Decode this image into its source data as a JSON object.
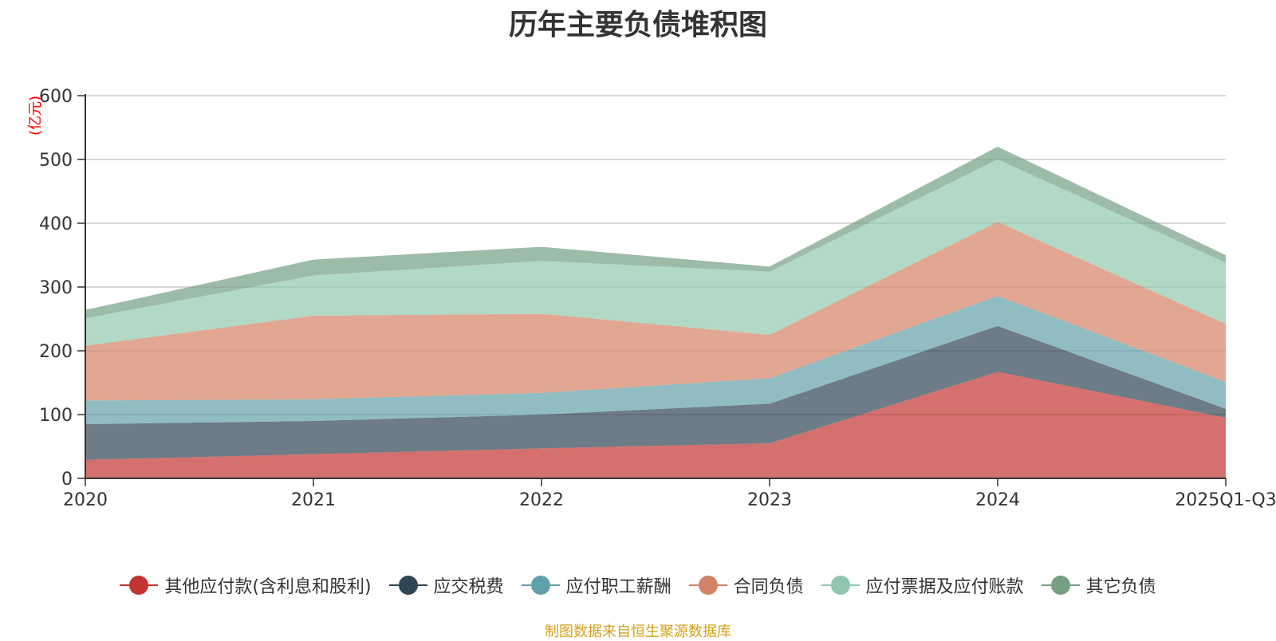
{
  "chart_data": {
    "type": "area",
    "stacked": true,
    "title": "历年主要负债堆积图",
    "unit_label": "(亿元)",
    "categories": [
      "2020",
      "2021",
      "2022",
      "2023",
      "2024",
      "2025Q1-Q3"
    ],
    "ylim": [
      0,
      600
    ],
    "yticks": [
      0,
      100,
      200,
      300,
      400,
      500,
      600
    ],
    "grid": true,
    "legend_position": "bottom",
    "series": [
      {
        "name": "其他应付款(含利息和股利)",
        "values": [
          29,
          38,
          47,
          55,
          167,
          95
        ],
        "color": "#c23531"
      },
      {
        "name": "应交税费",
        "values": [
          56,
          52,
          53,
          62,
          72,
          14
        ],
        "color": "#2f4554"
      },
      {
        "name": "应付职工薪酬",
        "values": [
          37,
          34,
          34,
          40,
          47,
          42
        ],
        "color": "#61a0a8"
      },
      {
        "name": "合同负债",
        "values": [
          86,
          131,
          124,
          68,
          116,
          91
        ],
        "color": "#d48265"
      },
      {
        "name": "应付票据及应付账款",
        "values": [
          43,
          63,
          83,
          99,
          98,
          96
        ],
        "color": "#91c7ae"
      },
      {
        "name": "其它负债",
        "values": [
          13,
          25,
          22,
          8,
          20,
          12
        ],
        "color": "#749f83"
      }
    ]
  },
  "source_note": "制图数据来自恒生聚源数据库",
  "colors": {
    "unit_label": "#ff0000",
    "source_note": "#d4a017",
    "axis": "#333333",
    "grid": "#cccccc"
  }
}
